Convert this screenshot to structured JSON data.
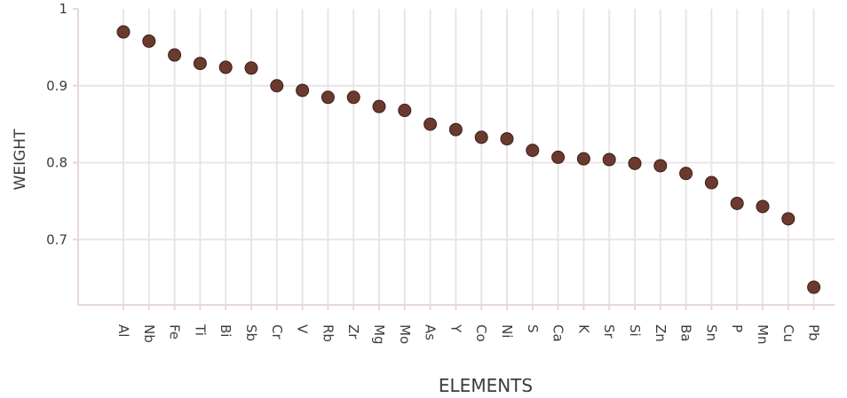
{
  "chart_data": {
    "type": "scatter",
    "xlabel": "ELEMENTS",
    "ylabel": "WEIGHT",
    "categories": [
      "Al",
      "Nb",
      "Fe",
      "Ti",
      "Bi",
      "Sb",
      "Cr",
      "V",
      "Rb",
      "Zr",
      "Mg",
      "Mo",
      "As",
      "Y",
      "Co",
      "Ni",
      "S",
      "Ca",
      "K",
      "Sr",
      "Si",
      "Zn",
      "Ba",
      "Sn",
      "P",
      "Mn",
      "Cu",
      "Pb"
    ],
    "values": [
      0.97,
      0.958,
      0.94,
      0.929,
      0.924,
      0.923,
      0.9,
      0.894,
      0.885,
      0.885,
      0.873,
      0.868,
      0.85,
      0.843,
      0.833,
      0.831,
      0.816,
      0.807,
      0.805,
      0.804,
      0.799,
      0.796,
      0.786,
      0.774,
      0.747,
      0.743,
      0.727,
      0.638
    ],
    "yticks": [
      0.7,
      0.8,
      0.9,
      1
    ],
    "ytick_labels": [
      "0.7",
      "0.8",
      "0.9",
      "1"
    ],
    "ylim": [
      0.615,
      1.0
    ],
    "grid": true,
    "colors": {
      "marker": "#6b3a2e",
      "marker_edge": "#3e1f17",
      "grid": "#ece4e4",
      "axis": "#e6d8d8",
      "text": "#3c3c3c"
    }
  }
}
